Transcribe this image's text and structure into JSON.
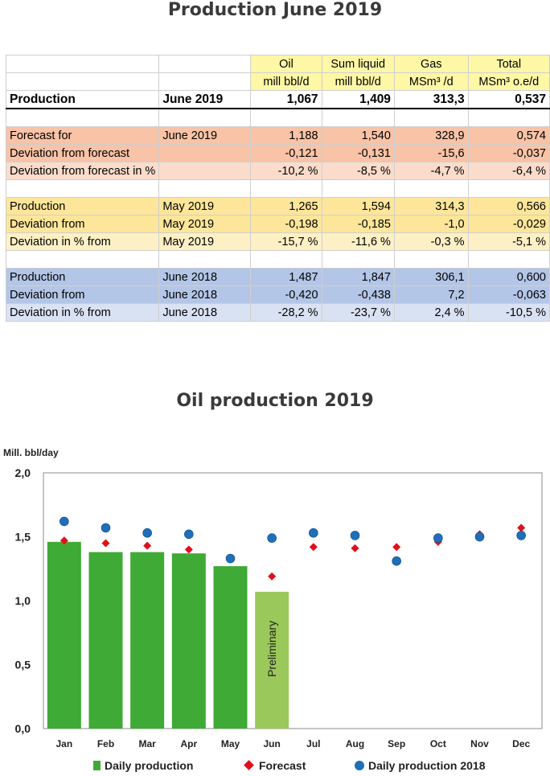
{
  "title": "Production June 2019",
  "table": {
    "header1": [
      "",
      "",
      "Oil",
      "Sum liquid",
      "Gas",
      "Total"
    ],
    "header2": [
      "",
      "",
      "mill bbl/d",
      "mill bbl/d",
      "MSm³ /d",
      "MSm³ o.e/d"
    ],
    "rows": [
      {
        "label": "Production",
        "period": "June 2019",
        "oil": "1,067",
        "liquid": "1,409",
        "gas": "313,3",
        "total": "0,537"
      },
      {
        "label": "Forecast for",
        "period": "June 2019",
        "oil": "1,188",
        "liquid": "1,540",
        "gas": "328,9",
        "total": "0,574"
      },
      {
        "label": "Deviation from forecast",
        "period": "",
        "oil": "-0,121",
        "liquid": "-0,131",
        "gas": "-15,6",
        "total": "-0,037"
      },
      {
        "label": "Deviation from forecast in %",
        "period": "",
        "oil": "-10,2 %",
        "liquid": "-8,5 %",
        "gas": "-4,7 %",
        "total": "-6,4 %"
      },
      {
        "label": "Production",
        "period": "May 2019",
        "oil": "1,265",
        "liquid": "1,594",
        "gas": "314,3",
        "total": "0,566"
      },
      {
        "label": "Deviation from",
        "period": "May 2019",
        "oil": "-0,198",
        "liquid": "-0,185",
        "gas": "-1,0",
        "total": "-0,029"
      },
      {
        "label": "Deviation  in % from",
        "period": "May 2019",
        "oil": "-15,7 %",
        "liquid": "-11,6 %",
        "gas": "-0,3 %",
        "total": "-5,1 %"
      },
      {
        "label": "Production",
        "period": "June 2018",
        "oil": "1,487",
        "liquid": "1,847",
        "gas": "306,1",
        "total": "0,600"
      },
      {
        "label": "Deviation from",
        "period": "June 2018",
        "oil": "-0,420",
        "liquid": "-0,438",
        "gas": "7,2",
        "total": "-0,063"
      },
      {
        "label": "Deviation  in % from",
        "period": "June 2018",
        "oil": "-28,2 %",
        "liquid": "-23,7 %",
        "gas": "2,4 %",
        "total": "-10,5 %"
      }
    ]
  },
  "colors": {
    "header": "#fdf7a6",
    "forecast_dark": "#f8c3a6",
    "forecast_light": "#fbdccb",
    "may_dark": "#fde69a",
    "may_light": "#fdf0c5",
    "june2018_dark": "#b4c6e7",
    "june2018_light": "#d9e2f3",
    "bar": "#3faa35",
    "bar_preliminary": "#9bc85a",
    "forecast_marker": "#e0101b",
    "dot_2018": "#1f6fb8"
  },
  "chart_data": {
    "type": "bar",
    "title": "Oil production 2019",
    "ylabel": "Mill. bbl/day",
    "xlabel": "",
    "ylim": [
      0,
      2.0
    ],
    "yticks": [
      "0,0",
      "0,5",
      "1,0",
      "1,5",
      "2,0"
    ],
    "categories": [
      "Jan",
      "Feb",
      "Mar",
      "Apr",
      "May",
      "Jun",
      "Jul",
      "Aug",
      "Sep",
      "Oct",
      "Nov",
      "Dec"
    ],
    "annotation": "Preliminary",
    "grid": false,
    "legend_position": "bottom",
    "series": [
      {
        "name": "Daily production",
        "kind": "bar",
        "values": [
          1.46,
          1.38,
          1.38,
          1.37,
          1.27,
          1.07,
          null,
          null,
          null,
          null,
          null,
          null
        ],
        "preliminary_index": 5
      },
      {
        "name": "Forecast",
        "kind": "marker-diamond",
        "values": [
          1.47,
          1.45,
          1.43,
          1.4,
          null,
          1.19,
          1.42,
          1.41,
          1.42,
          1.46,
          1.52,
          1.57
        ]
      },
      {
        "name": "Daily production 2018",
        "kind": "marker-circle",
        "values": [
          1.62,
          1.57,
          1.53,
          1.52,
          1.33,
          1.49,
          1.53,
          1.51,
          1.31,
          1.49,
          1.5,
          1.51
        ]
      }
    ]
  }
}
